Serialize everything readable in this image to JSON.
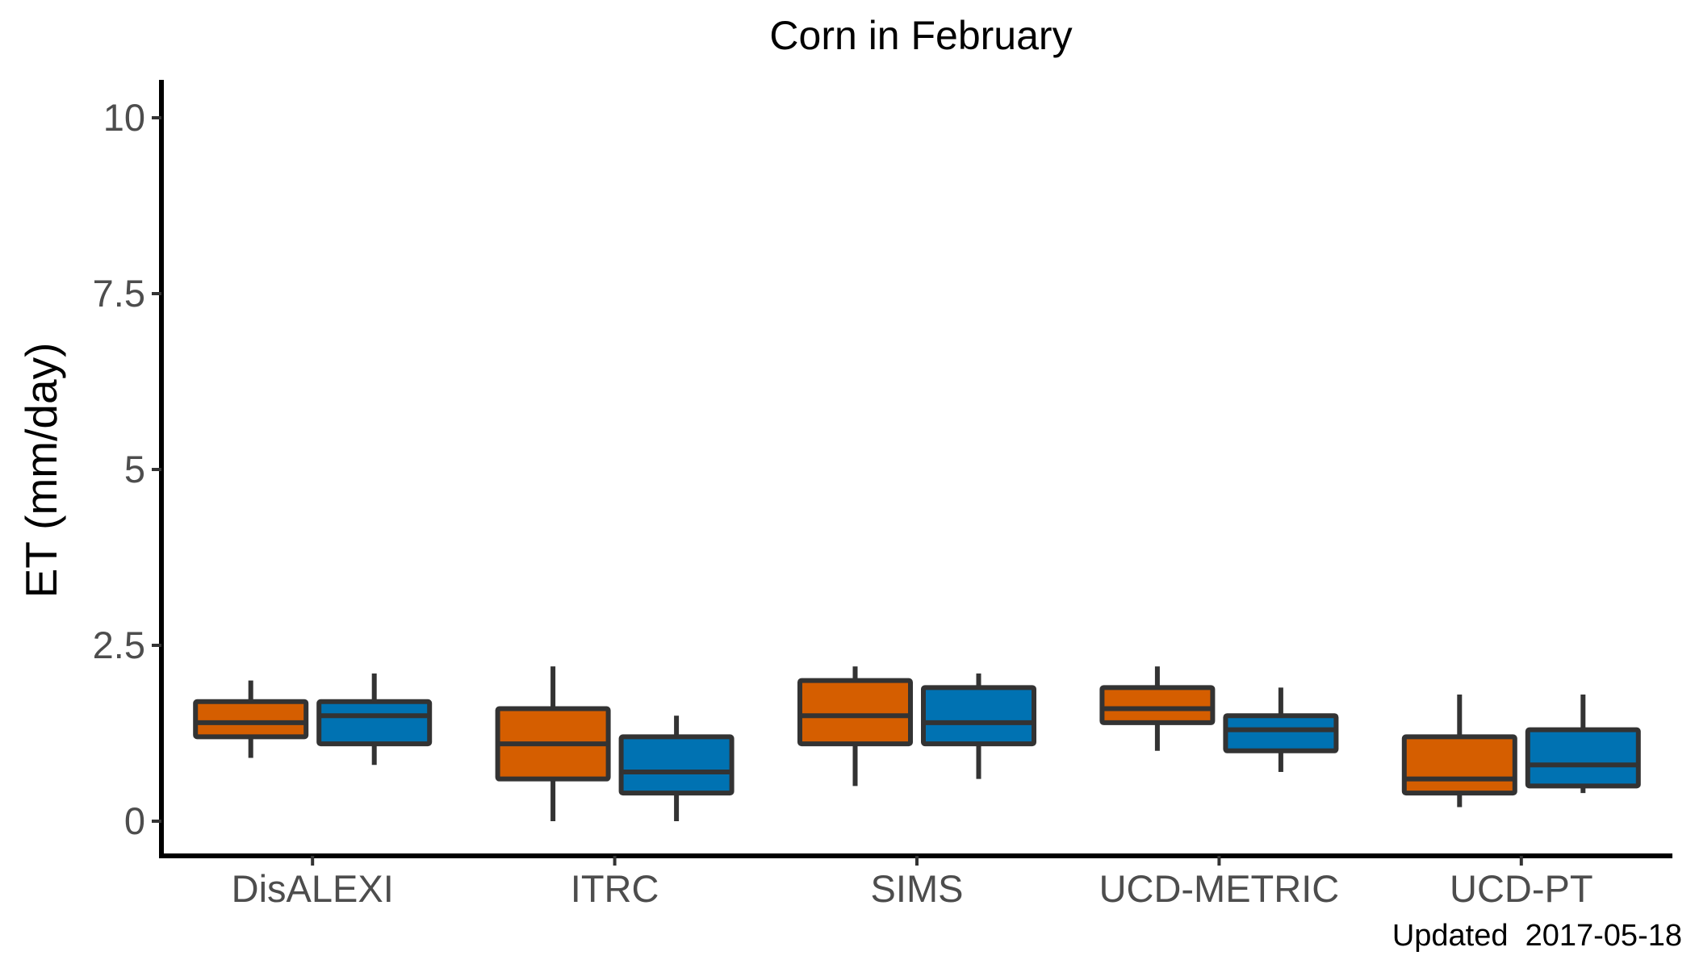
{
  "chart_data": {
    "type": "box",
    "title": "Corn in February",
    "xlabel": "",
    "ylabel": "ET (mm/day)",
    "ylim": [
      -0.5,
      10.5
    ],
    "yticks": [
      0,
      2.5,
      5,
      7.5,
      10
    ],
    "ytick_labels": [
      "0",
      "2.5",
      "5",
      "7.5",
      "10"
    ],
    "categories": [
      "DisALEXI",
      "ITRC",
      "SIMS",
      "UCD-METRIC",
      "UCD-PT"
    ],
    "grid": false,
    "legend": "none",
    "caption": "Updated  2017-05-18",
    "series": [
      {
        "color": "#D55E00",
        "boxes": [
          {
            "min": 0.9,
            "q1": 1.2,
            "median": 1.4,
            "q3": 1.7,
            "max": 2.0
          },
          {
            "min": 0.0,
            "q1": 0.6,
            "median": 1.1,
            "q3": 1.6,
            "max": 2.2
          },
          {
            "min": 0.5,
            "q1": 1.1,
            "median": 1.5,
            "q3": 2.0,
            "max": 2.2
          },
          {
            "min": 1.0,
            "q1": 1.4,
            "median": 1.6,
            "q3": 1.9,
            "max": 2.2
          },
          {
            "min": 0.2,
            "q1": 0.4,
            "median": 0.6,
            "q3": 1.2,
            "max": 1.8
          }
        ]
      },
      {
        "color": "#0072B2",
        "boxes": [
          {
            "min": 0.8,
            "q1": 1.1,
            "median": 1.5,
            "q3": 1.7,
            "max": 2.1
          },
          {
            "min": 0.0,
            "q1": 0.4,
            "median": 0.7,
            "q3": 1.2,
            "max": 1.5
          },
          {
            "min": 0.6,
            "q1": 1.1,
            "median": 1.4,
            "q3": 1.9,
            "max": 2.1
          },
          {
            "min": 0.7,
            "q1": 1.0,
            "median": 1.3,
            "q3": 1.5,
            "max": 1.9
          },
          {
            "min": 0.4,
            "q1": 0.5,
            "median": 0.8,
            "q3": 1.3,
            "max": 1.8
          }
        ]
      }
    ]
  }
}
